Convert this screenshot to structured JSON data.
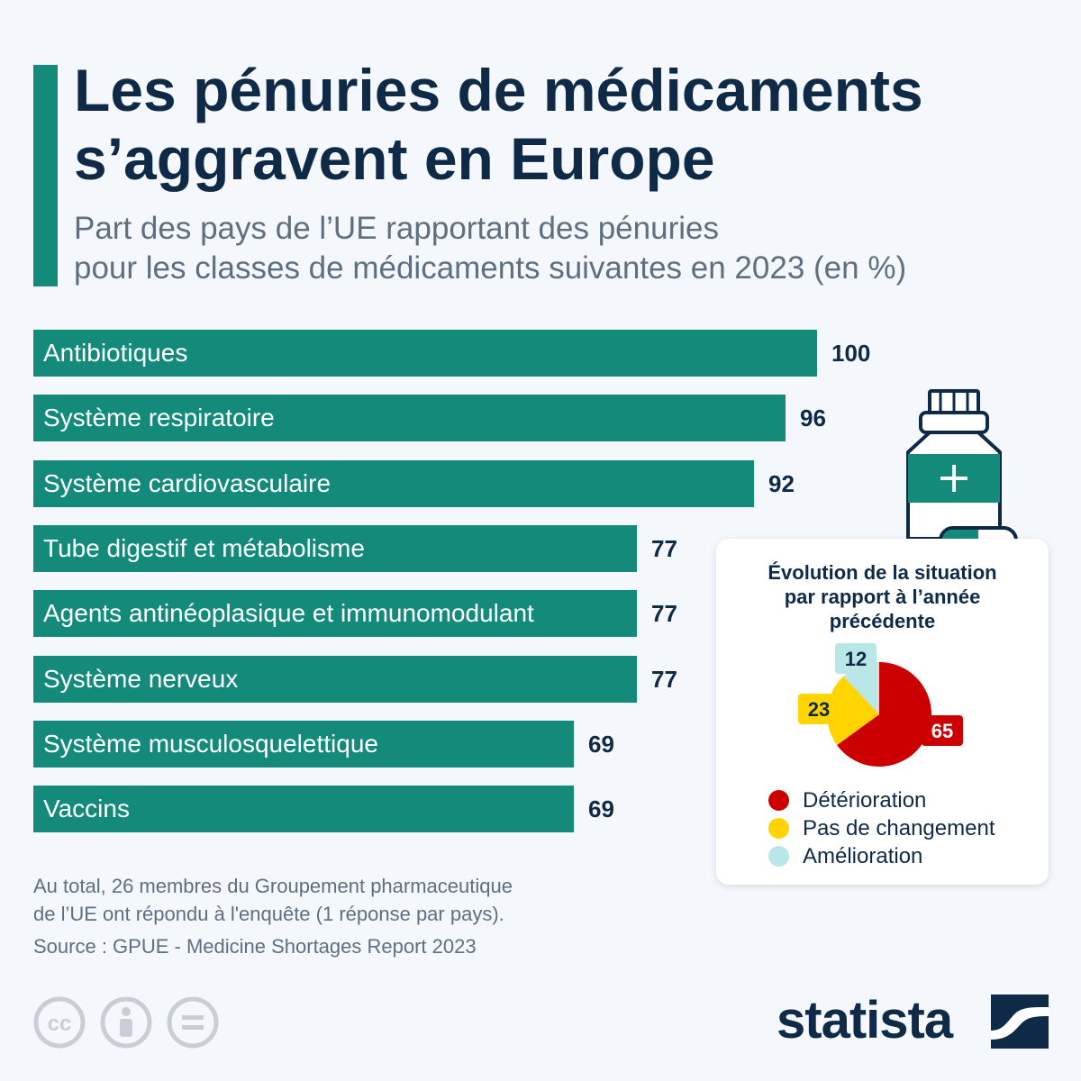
{
  "header": {
    "title_line1": "Les pénuries de médicaments",
    "title_line2": "s’aggravent en Europe",
    "subtitle_line1": "Part des pays de l’UE rapportant des pénuries",
    "subtitle_line2": "pour les classes de médicaments suivantes en 2023 (en %)"
  },
  "colors": {
    "bar": "#138a7a",
    "title": "#0e2a47",
    "deterioration": "#cc0000",
    "no_change": "#ffd400",
    "improvement": "#b9e6e6"
  },
  "chart_data": [
    {
      "type": "bar",
      "orientation": "horizontal",
      "categories": [
        "Antibiotiques",
        "Système respiratoire",
        "Système cardiovasculaire",
        "Tube digestif et métabolisme",
        "Agents antinéoplasique et immunomodulant",
        "Système nerveux",
        "Système musculosquelettique",
        "Vaccins"
      ],
      "values": [
        100,
        96,
        92,
        77,
        77,
        77,
        69,
        69
      ],
      "xlim": [
        0,
        100
      ],
      "grid": false
    },
    {
      "type": "pie",
      "title_line1": "Évolution de la situation",
      "title_line2": "par rapport à l’année",
      "title_line3": "précédente",
      "labels": [
        "Détérioration",
        "Pas de changement",
        "Amélioration"
      ],
      "values": [
        65,
        23,
        12
      ],
      "legend": "bottom"
    }
  ],
  "footer": {
    "note_line1": "Au total, 26 membres du Groupement pharmaceutique",
    "note_line2": "de l’UE ont répondu à l'enquête (1 réponse par pays).",
    "source": "Source : GPUE - Medicine Shortages Report 2023",
    "logo_text": "statista"
  },
  "icons": [
    "cc-icon",
    "attribution-icon",
    "no-derivatives-icon",
    "medicine-bottle-icon",
    "statista-logo-icon"
  ]
}
